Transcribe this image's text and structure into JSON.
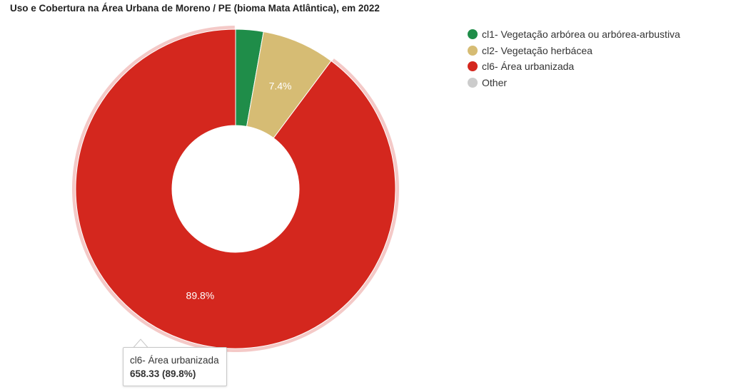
{
  "title": "Uso e Cobertura na Área Urbana de Moreno / PE (bioma Mata Atlântica), em 2022",
  "chart_data": {
    "type": "pie",
    "donut": true,
    "title": "Uso e Cobertura na Área Urbana de Moreno / PE (bioma Mata Atlântica), em 2022",
    "legend_position": "top-right",
    "slices": [
      {
        "name": "cl1- Vegetação arbórea ou arbórea-arbustiva",
        "percent": 2.8,
        "color": "#1f8d49",
        "label": ""
      },
      {
        "name": "cl2- Vegetação herbácea",
        "percent": 7.4,
        "color": "#d6bc74",
        "label": "7.4%"
      },
      {
        "name": "cl6- Área urbanizada",
        "value": 658.33,
        "percent": 89.8,
        "color": "#d4271e",
        "label": "89.8%",
        "hovered": true
      },
      {
        "name": "Other",
        "percent": 0,
        "color": "#cccccc",
        "label": ""
      }
    ]
  },
  "tooltip": {
    "name": "cl6- Área urbanizada",
    "value_text": "658.33 (89.8%)"
  }
}
